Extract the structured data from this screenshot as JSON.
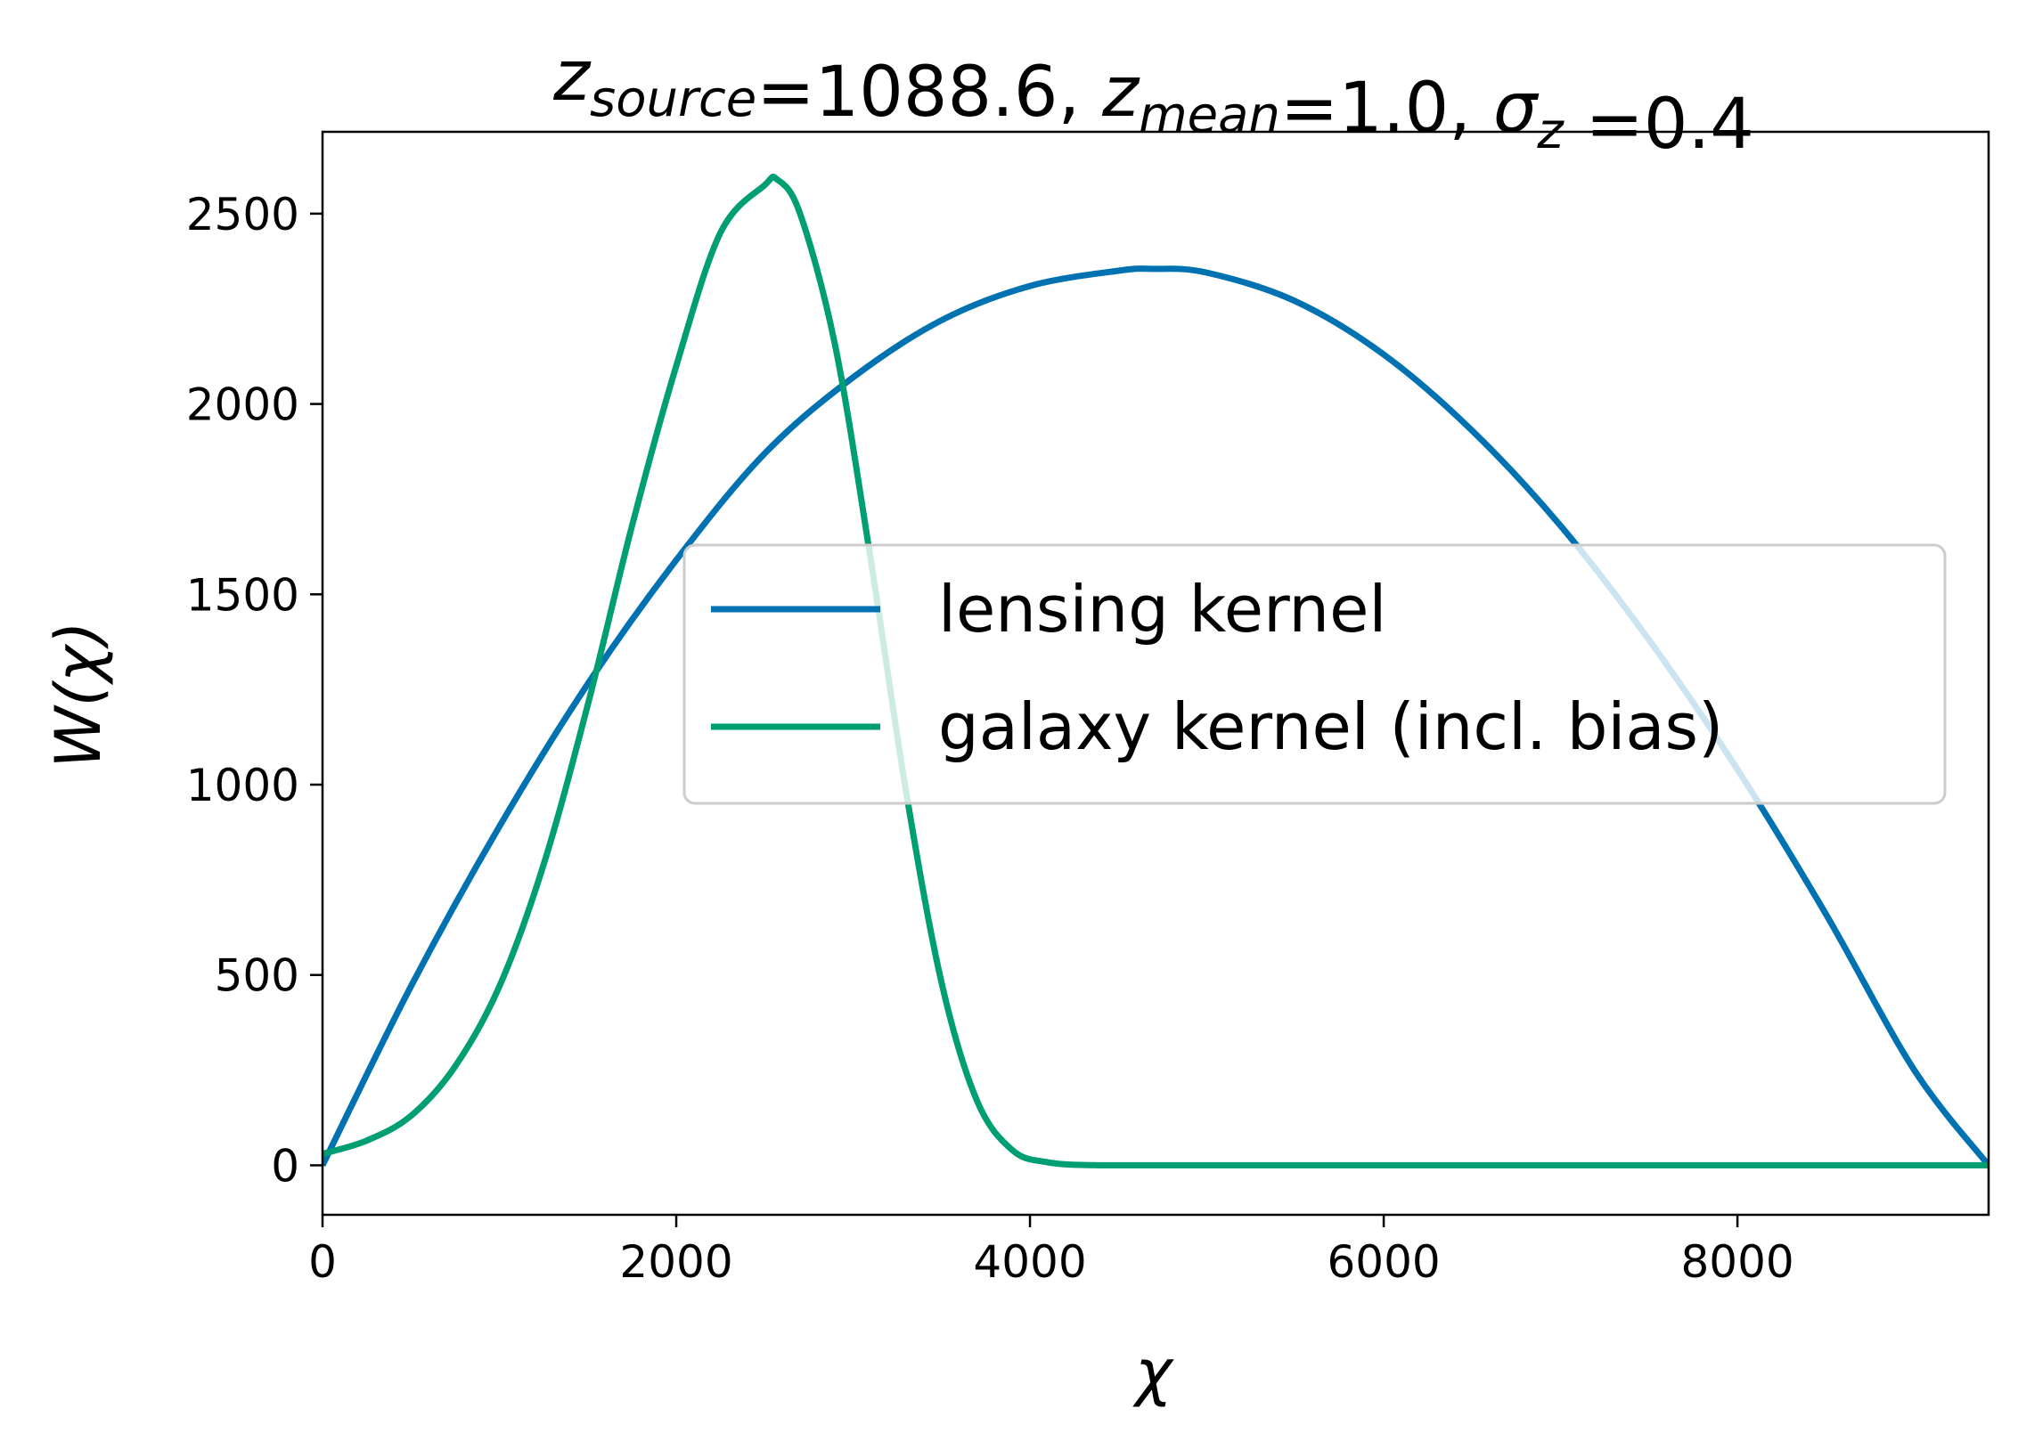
{
  "chart_data": {
    "type": "line",
    "title": {
      "parts": [
        {
          "text": "z",
          "italic": true,
          "sub": "source",
          "sub_italic": true
        },
        {
          "text": "=1088.6, "
        },
        {
          "text": "z",
          "italic": true,
          "sub": "mean",
          "sub_italic": true
        },
        {
          "text": "=1.0, "
        },
        {
          "text": "σ",
          "italic": true,
          "sub": "z",
          "sub_italic": true
        },
        {
          "text": " =0.4"
        }
      ]
    },
    "xlabel": "χ",
    "ylabel": "W(χ)",
    "xlim": [
      0,
      9420
    ],
    "ylim": [
      -130,
      2715
    ],
    "xticks": [
      0,
      2000,
      4000,
      6000,
      8000
    ],
    "yticks": [
      0,
      500,
      1000,
      1500,
      2000,
      2500
    ],
    "legend_position": "center-right",
    "series": [
      {
        "name": "lensing kernel",
        "color": "#0072b2",
        "x": [
          0,
          500,
          1000,
          1500,
          2000,
          2500,
          3000,
          3500,
          4000,
          4500,
          4700,
          5000,
          5500,
          6000,
          6500,
          7000,
          7500,
          8000,
          8500,
          9000,
          9420
        ],
        "y": [
          0,
          470,
          890,
          1265,
          1590,
          1870,
          2070,
          2220,
          2310,
          2350,
          2355,
          2345,
          2270,
          2130,
          1930,
          1680,
          1380,
          1040,
          660,
          250,
          0
        ]
      },
      {
        "name": "galaxy kernel (incl. bias)",
        "color": "#009e73",
        "x": [
          0,
          250,
          500,
          750,
          1000,
          1250,
          1500,
          1750,
          2000,
          2250,
          2500,
          2570,
          2700,
          2900,
          3100,
          3300,
          3500,
          3700,
          3900,
          4100,
          4400,
          5000,
          6000,
          7000,
          8000,
          9000,
          9420
        ],
        "y": [
          30,
          65,
          130,
          260,
          470,
          790,
          1210,
          1680,
          2100,
          2450,
          2575,
          2590,
          2500,
          2150,
          1590,
          980,
          480,
          170,
          40,
          8,
          0,
          0,
          0,
          0,
          0,
          0,
          0
        ]
      }
    ]
  }
}
